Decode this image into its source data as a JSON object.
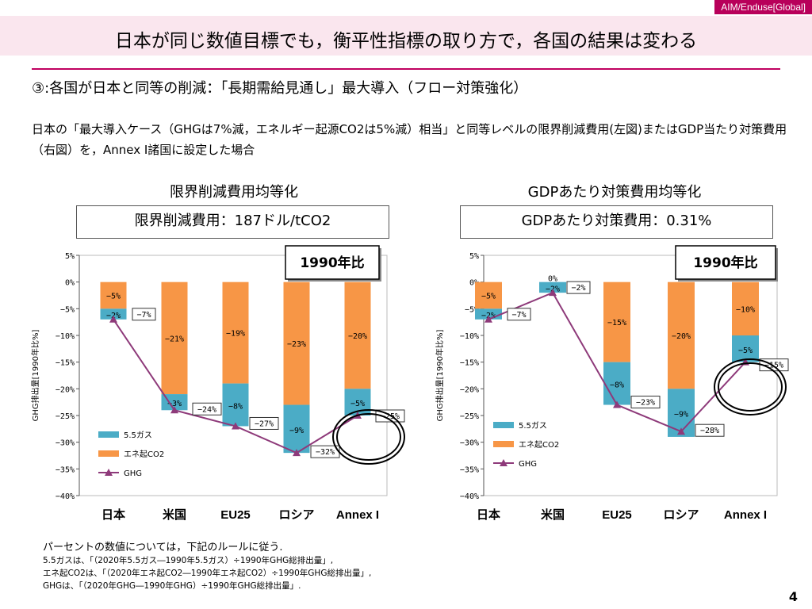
{
  "tag": "AIM/Enduse[Global]",
  "title": "日本が同じ数値目標でも，衡平性指標の取り方で，各国の結果は変わる",
  "subtitle": "③:各国が日本と同等の削減：「長期需給見通し」最大導入（フロー対策強化）",
  "description": "日本の「最大導入ケース（GHGは7%減，エネルギー起源CO2は5%減）相当」と同等レベルの限界削減費用(左図)またはGDP当たり対策費用（右図）を，Annex I諸国に設定した場合",
  "left_heading": "限界削減費用均等化",
  "left_box": "限界削減費用：187ドル/tCO2",
  "right_heading": "GDPあたり対策費用均等化",
  "right_box": "GDPあたり対策費用：0.31%",
  "notes": [
    "パーセントの数値については，下記のルールに従う.",
    "5.5ガスは、「（2020年5.5ガス―1990年5.5ガス）÷1990年GHG総排出量」,",
    "エネ起CO2は、「（2020年エネ起CO2―1990年エネ起CO2）÷1990年GHG総排出量」,",
    "GHGは、「（2020年GHG―1990年GHG）÷1990年GHG総排出量」."
  ],
  "page_number": "4",
  "colors": {
    "gas55": "#4bacc6",
    "co2": "#f79646",
    "ghg": "#8e3a7a",
    "accent": "#c00060"
  },
  "chart_data": [
    {
      "type": "bar",
      "stacked": true,
      "badge": "1990年比",
      "ylabel": "GHG排出量[1990年比%]",
      "ylim": [
        -40,
        5
      ],
      "yticks": [
        "5%",
        "0%",
        "−5%",
        "−10%",
        "−15%",
        "−20%",
        "−25%",
        "−30%",
        "−35%",
        "−40%"
      ],
      "categories": [
        "日本",
        "米国",
        "EU25",
        "ロシア",
        "Annex I"
      ],
      "series": [
        {
          "name": "5.5ガス",
          "values": [
            -2,
            -3,
            -8,
            -9,
            -5
          ],
          "labels": [
            "−2%",
            "−3%",
            "−8%",
            "−9%",
            "−5%"
          ]
        },
        {
          "name": "エネ起CO2",
          "values": [
            -5,
            -21,
            -19,
            -23,
            -20
          ],
          "labels": [
            "−5%",
            "−21%",
            "−19%",
            "−23%",
            "−20%"
          ]
        },
        {
          "name": "GHG",
          "type": "line",
          "values": [
            -7,
            -24,
            -27,
            -32,
            -25
          ],
          "labels": [
            "−7%",
            "−24%",
            "−27%",
            "−32%",
            "−25%"
          ]
        }
      ],
      "highlight_category": "Annex I"
    },
    {
      "type": "bar",
      "stacked": true,
      "badge": "1990年比",
      "ylabel": "GHG排出量[1990年比%]",
      "ylim": [
        -40,
        5
      ],
      "yticks": [
        "5%",
        "0%",
        "−5%",
        "−10%",
        "−15%",
        "−20%",
        "−25%",
        "−30%",
        "−35%",
        "−40%"
      ],
      "categories": [
        "日本",
        "米国",
        "EU25",
        "ロシア",
        "Annex I"
      ],
      "series": [
        {
          "name": "5.5ガス",
          "values": [
            -2,
            -2,
            -8,
            -9,
            -5
          ],
          "labels": [
            "−2%",
            "−2%",
            "−8%",
            "−9%",
            "−5%"
          ]
        },
        {
          "name": "エネ起CO2",
          "values": [
            -5,
            0,
            -15,
            -20,
            -10
          ],
          "labels": [
            "−5%",
            "0%",
            "−15%",
            "−20%",
            "−10%"
          ]
        },
        {
          "name": "GHG",
          "type": "line",
          "values": [
            -7,
            -2,
            -23,
            -28,
            -15
          ],
          "labels": [
            "−7%",
            "−2%",
            "−23%",
            "−28%",
            "−15%"
          ]
        }
      ],
      "highlight_category": "Annex I"
    }
  ]
}
